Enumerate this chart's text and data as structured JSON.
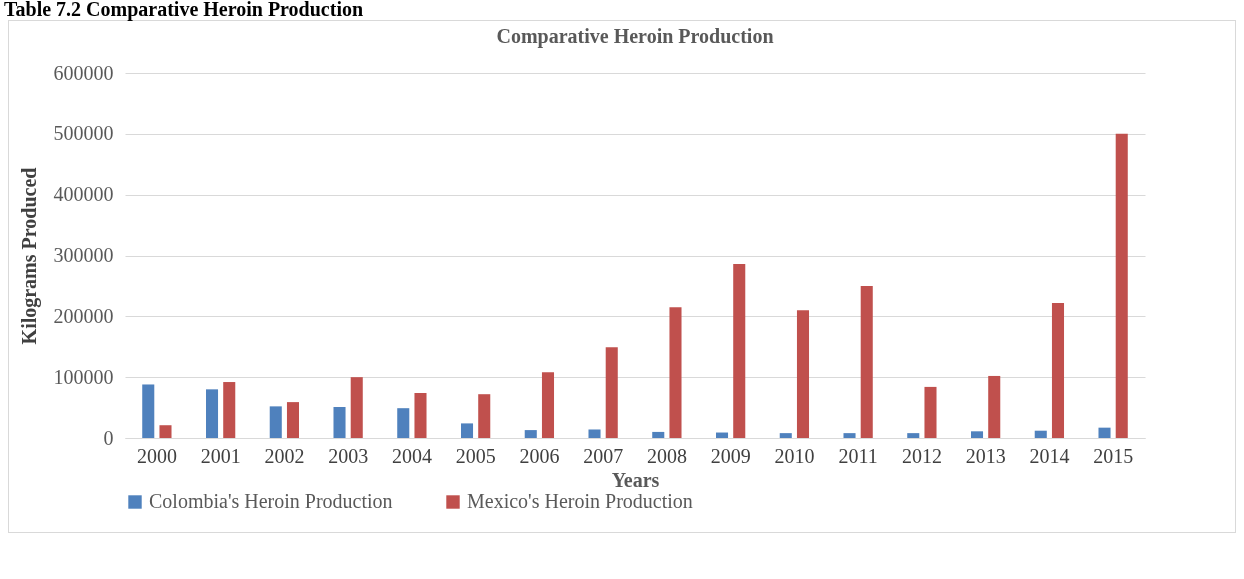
{
  "chart_data": {
    "type": "bar",
    "title": "Comparative Heroin Production",
    "xlabel": "Years",
    "ylabel": "Kilograms Produced",
    "annotations": [
      "Table 7.2 Comparative Heroin Production"
    ],
    "categories": [
      "2000",
      "2001",
      "2002",
      "2003",
      "2004",
      "2005",
      "2006",
      "2007",
      "2008",
      "2009",
      "2010",
      "2011",
      "2012",
      "2013",
      "2014",
      "2015"
    ],
    "series": [
      {
        "name": "Colombia's Heroin Production",
        "color": "#4f81bd",
        "values": [
          88000,
          80000,
          52000,
          51000,
          49000,
          24000,
          13000,
          14000,
          10000,
          9000,
          8000,
          8000,
          8000,
          11000,
          12000,
          17000
        ]
      },
      {
        "name": "Mexico's Heroin Production",
        "color": "#c0504d",
        "values": [
          21000,
          92000,
          59000,
          100000,
          74000,
          72000,
          108000,
          149000,
          215000,
          286000,
          210000,
          250000,
          84000,
          102000,
          222000,
          500000
        ]
      }
    ],
    "ylim": [
      0,
      600000
    ],
    "yticks": [
      0,
      100000,
      200000,
      300000,
      400000,
      500000,
      600000
    ],
    "grid": "y",
    "legend": "bottom"
  }
}
